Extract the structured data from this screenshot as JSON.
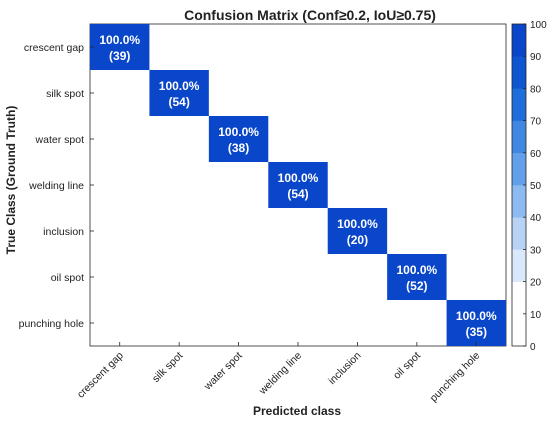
{
  "chart_data": {
    "type": "heatmap",
    "title": "Confusion Matrix (Conf≥0.2, IoU≥0.75)",
    "xlabel": "Predicted class",
    "ylabel": "True Class (Ground Truth)",
    "row_labels": [
      "crescent gap",
      "silk spot",
      "water spot",
      "welding line",
      "inclusion",
      "oil spot",
      "punching hole"
    ],
    "col_labels": [
      "crescent gap",
      "silk spot",
      "water spot",
      "welding line",
      "inclusion",
      "oil spot",
      "punching hole"
    ],
    "cells": [
      {
        "row": 0,
        "col": 0,
        "percent": "100.0%",
        "count": "(39)",
        "value": 100
      },
      {
        "row": 1,
        "col": 1,
        "percent": "100.0%",
        "count": "(54)",
        "value": 100
      },
      {
        "row": 2,
        "col": 2,
        "percent": "100.0%",
        "count": "(38)",
        "value": 100
      },
      {
        "row": 3,
        "col": 3,
        "percent": "100.0%",
        "count": "(54)",
        "value": 100
      },
      {
        "row": 4,
        "col": 4,
        "percent": "100.0%",
        "count": "(20)",
        "value": 100
      },
      {
        "row": 5,
        "col": 5,
        "percent": "100.0%",
        "count": "(52)",
        "value": 100
      },
      {
        "row": 6,
        "col": 6,
        "percent": "100.0%",
        "count": "(35)",
        "value": 100
      }
    ],
    "colorbar": {
      "range": [
        0,
        100
      ],
      "ticks": [
        0,
        10,
        20,
        30,
        40,
        50,
        60,
        70,
        80,
        90,
        100
      ],
      "colors": [
        "#ffffff",
        "#ffffff",
        "#d9e8fa",
        "#b7d2f5",
        "#8dbaf0",
        "#63a0ea",
        "#4087e3",
        "#1e6ddb",
        "#0d55d1",
        "#0a46c9"
      ]
    },
    "cell_color": "#0a46c9",
    "cell_text_color": "#ffffff",
    "grid": false
  }
}
